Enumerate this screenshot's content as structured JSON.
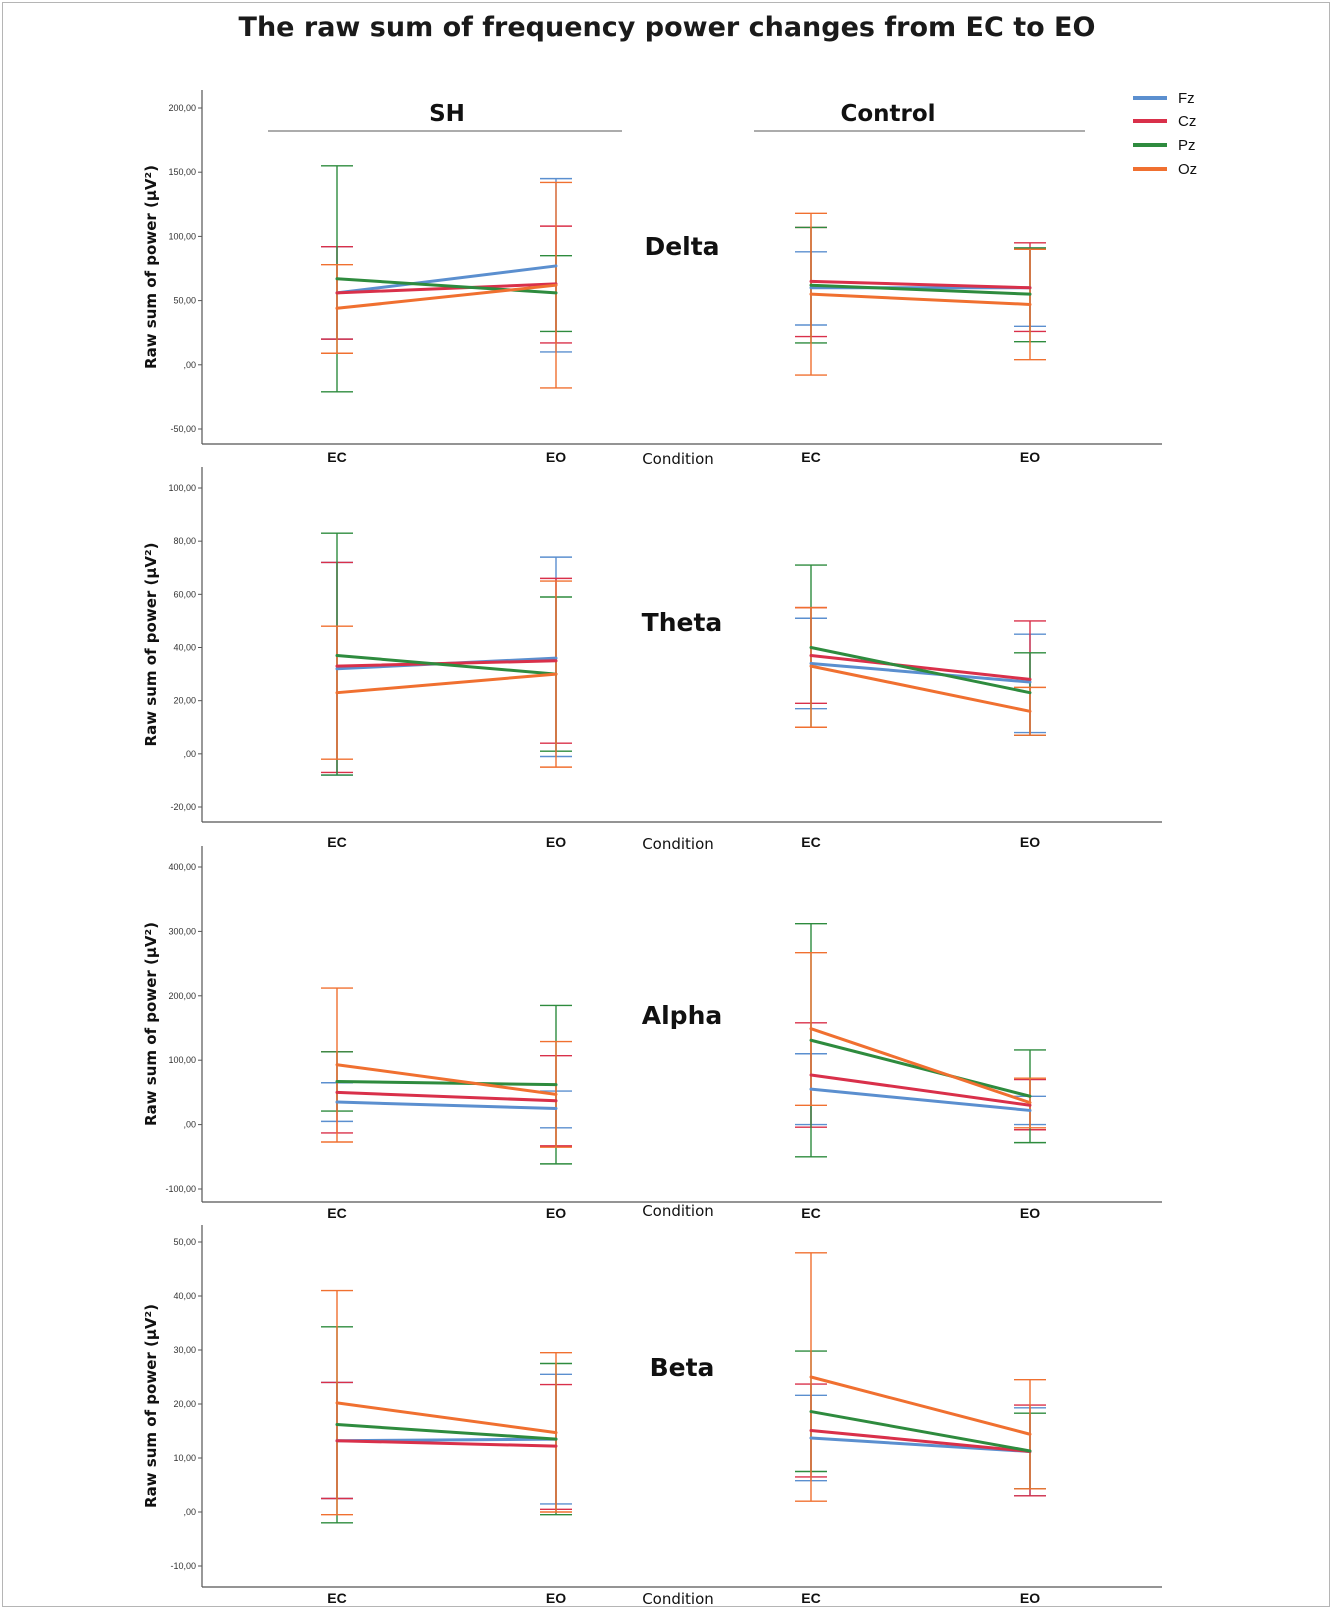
{
  "title": "The raw sum of frequency power changes from EC to EO",
  "groups": [
    "SH",
    "Control"
  ],
  "legend": [
    {
      "name": "Fz",
      "color": "#5b8fcf"
    },
    {
      "name": "Cz",
      "color": "#d9304a"
    },
    {
      "name": "Pz",
      "color": "#2e8b3e"
    },
    {
      "name": "Oz",
      "color": "#f07030"
    }
  ],
  "chart_data": [
    {
      "type": "line",
      "band": "Delta",
      "xlabel": "Condition",
      "ylabel": "Raw sum of power (µV²)",
      "x": [
        "EC",
        "EO"
      ],
      "ylim": [
        -50,
        200
      ],
      "yticks": [
        -50,
        0,
        50,
        100,
        150,
        200
      ],
      "tick_labels": [
        "-50,00",
        ",00",
        "50,00",
        "100,00",
        "150,00",
        "200,00"
      ],
      "groups": [
        {
          "name": "SH",
          "series": [
            {
              "name": "Fz",
              "values": [
                56,
                77
              ],
              "err_low": [
                20,
                10
              ],
              "err_high": [
                92,
                145
              ]
            },
            {
              "name": "Cz",
              "values": [
                56,
                63
              ],
              "err_low": [
                20,
                17
              ],
              "err_high": [
                92,
                108
              ]
            },
            {
              "name": "Pz",
              "values": [
                67,
                56
              ],
              "err_low": [
                -21,
                26
              ],
              "err_high": [
                155,
                85
              ]
            },
            {
              "name": "Oz",
              "values": [
                44,
                62
              ],
              "err_low": [
                9,
                -18
              ],
              "err_high": [
                78,
                142
              ]
            }
          ]
        },
        {
          "name": "Control",
          "series": [
            {
              "name": "Fz",
              "values": [
                60,
                60
              ],
              "err_low": [
                31,
                30
              ],
              "err_high": [
                88,
                91
              ]
            },
            {
              "name": "Cz",
              "values": [
                65,
                60
              ],
              "err_low": [
                22,
                26
              ],
              "err_high": [
                107,
                95
              ]
            },
            {
              "name": "Pz",
              "values": [
                62,
                55
              ],
              "err_low": [
                17,
                18
              ],
              "err_high": [
                107,
                91
              ]
            },
            {
              "name": "Oz",
              "values": [
                55,
                47
              ],
              "err_low": [
                -8,
                4
              ],
              "err_high": [
                118,
                90
              ]
            }
          ]
        }
      ]
    },
    {
      "type": "line",
      "band": "Theta",
      "xlabel": "Condition",
      "ylabel": "Raw sum of power (µV²)",
      "x": [
        "EC",
        "EO"
      ],
      "ylim": [
        -20,
        100
      ],
      "yticks": [
        -20,
        0,
        20,
        40,
        60,
        80,
        100
      ],
      "tick_labels": [
        "-20,00",
        ",00",
        "20,00",
        "40,00",
        "60,00",
        "80,00",
        "100,00"
      ],
      "groups": [
        {
          "name": "SH",
          "series": [
            {
              "name": "Fz",
              "values": [
                32,
                36
              ],
              "err_low": [
                -8,
                -1
              ],
              "err_high": [
                72,
                74
              ]
            },
            {
              "name": "Cz",
              "values": [
                33,
                35
              ],
              "err_low": [
                -7,
                4
              ],
              "err_high": [
                72,
                66
              ]
            },
            {
              "name": "Pz",
              "values": [
                37,
                30
              ],
              "err_low": [
                -8,
                1
              ],
              "err_high": [
                83,
                59
              ]
            },
            {
              "name": "Oz",
              "values": [
                23,
                30
              ],
              "err_low": [
                -2,
                -5
              ],
              "err_high": [
                48,
                65
              ]
            }
          ]
        },
        {
          "name": "Control",
          "series": [
            {
              "name": "Fz",
              "values": [
                34,
                27
              ],
              "err_low": [
                17,
                8
              ],
              "err_high": [
                51,
                45
              ]
            },
            {
              "name": "Cz",
              "values": [
                37,
                28
              ],
              "err_low": [
                19,
                7
              ],
              "err_high": [
                55,
                50
              ]
            },
            {
              "name": "Pz",
              "values": [
                40,
                23
              ],
              "err_low": [
                10,
                7
              ],
              "err_high": [
                71,
                38
              ]
            },
            {
              "name": "Oz",
              "values": [
                33,
                16
              ],
              "err_low": [
                10,
                7
              ],
              "err_high": [
                55,
                25
              ]
            }
          ]
        }
      ]
    },
    {
      "type": "line",
      "band": "Alpha",
      "xlabel": "Condition",
      "ylabel": "Raw sum of power (µV²)",
      "x": [
        "EC",
        "EO"
      ],
      "ylim": [
        -100,
        400
      ],
      "yticks": [
        -100,
        0,
        100,
        200,
        300,
        400
      ],
      "tick_labels": [
        "-100,00",
        ",00",
        "100,00",
        "200,00",
        "300,00",
        "400,00"
      ],
      "groups": [
        {
          "name": "SH",
          "series": [
            {
              "name": "Fz",
              "values": [
                35,
                25
              ],
              "err_low": [
                5,
                -5
              ],
              "err_high": [
                65,
                52
              ]
            },
            {
              "name": "Cz",
              "values": [
                50,
                37
              ],
              "err_low": [
                -13,
                -33
              ],
              "err_high": [
                113,
                107
              ]
            },
            {
              "name": "Pz",
              "values": [
                67,
                62
              ],
              "err_low": [
                21,
                -61
              ],
              "err_high": [
                113,
                185
              ]
            },
            {
              "name": "Oz",
              "values": [
                93,
                47
              ],
              "err_low": [
                -27,
                -35
              ],
              "err_high": [
                212,
                129
              ]
            }
          ]
        },
        {
          "name": "Control",
          "series": [
            {
              "name": "Fz",
              "values": [
                55,
                22
              ],
              "err_low": [
                0,
                0
              ],
              "err_high": [
                110,
                44
              ]
            },
            {
              "name": "Cz",
              "values": [
                77,
                30
              ],
              "err_low": [
                -4,
                -8
              ],
              "err_high": [
                158,
                70
              ]
            },
            {
              "name": "Pz",
              "values": [
                131,
                44
              ],
              "err_low": [
                -50,
                -28
              ],
              "err_high": [
                312,
                116
              ]
            },
            {
              "name": "Oz",
              "values": [
                149,
                34
              ],
              "err_low": [
                30,
                -5
              ],
              "err_high": [
                267,
                72
              ]
            }
          ]
        }
      ]
    },
    {
      "type": "line",
      "band": "Beta",
      "xlabel": "Condition",
      "ylabel": "Raw sum of power (µV²)",
      "x": [
        "EC",
        "EO"
      ],
      "ylim": [
        -10,
        50
      ],
      "yticks": [
        -10,
        0,
        10,
        20,
        30,
        40,
        50
      ],
      "tick_labels": [
        "-10,00",
        ",00",
        "10,00",
        "20,00",
        "30,00",
        "40,00",
        "50,00"
      ],
      "groups": [
        {
          "name": "SH",
          "series": [
            {
              "name": "Fz",
              "values": [
                13.2,
                13.5
              ],
              "err_low": [
                2.5,
                1.5
              ],
              "err_high": [
                24,
                25.5
              ]
            },
            {
              "name": "Cz",
              "values": [
                13.2,
                12.2
              ],
              "err_low": [
                2.5,
                0.5
              ],
              "err_high": [
                24,
                23.6
              ]
            },
            {
              "name": "Pz",
              "values": [
                16.2,
                13.5
              ],
              "err_low": [
                -2,
                -0.5
              ],
              "err_high": [
                34.3,
                27.5
              ]
            },
            {
              "name": "Oz",
              "values": [
                20.2,
                14.7
              ],
              "err_low": [
                -0.5,
                0
              ],
              "err_high": [
                41,
                29.5
              ]
            }
          ]
        },
        {
          "name": "Control",
          "series": [
            {
              "name": "Fz",
              "values": [
                13.7,
                11.2
              ],
              "err_low": [
                5.8,
                3
              ],
              "err_high": [
                21.6,
                19.3
              ]
            },
            {
              "name": "Cz",
              "values": [
                15.1,
                11.2
              ],
              "err_low": [
                6.5,
                3
              ],
              "err_high": [
                23.7,
                19.8
              ]
            },
            {
              "name": "Pz",
              "values": [
                18.6,
                11.3
              ],
              "err_low": [
                7.5,
                4.3
              ],
              "err_high": [
                29.8,
                18.3
              ]
            },
            {
              "name": "Oz",
              "values": [
                25,
                14.4
              ],
              "err_low": [
                2,
                4.3
              ],
              "err_high": [
                48,
                24.5
              ]
            }
          ]
        }
      ]
    }
  ]
}
